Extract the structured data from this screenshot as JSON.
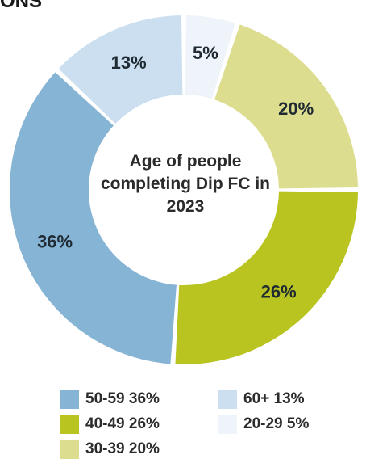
{
  "header": {
    "title_fragment": "ONS"
  },
  "chart_data": {
    "type": "pie",
    "style": "donut",
    "title": "Age of people completing Dip FC in 2023",
    "slices": [
      {
        "name": "20-29",
        "value": 5,
        "label": "5%",
        "color": "#eef4f9"
      },
      {
        "name": "30-39",
        "value": 20,
        "label": "20%",
        "color": "#dcdd8e"
      },
      {
        "name": "40-49",
        "value": 26,
        "label": "26%",
        "color": "#b9c421"
      },
      {
        "name": "50-59",
        "value": 36,
        "label": "36%",
        "color": "#86b4d5"
      },
      {
        "name": "60+",
        "value": 13,
        "label": "13%",
        "color": "#cbdff0"
      }
    ],
    "legend": {
      "placement": "bottom",
      "items": [
        {
          "text": "50-59 36%",
          "color": "#86b4d5"
        },
        {
          "text": "60+ 13%",
          "color": "#cbdff0"
        },
        {
          "text": "40-49 26%",
          "color": "#b9c421"
        },
        {
          "text": "20-29 5%",
          "color": "#eef4f9"
        },
        {
          "text": "30-39 20%",
          "color": "#dcdd8e"
        }
      ]
    }
  }
}
